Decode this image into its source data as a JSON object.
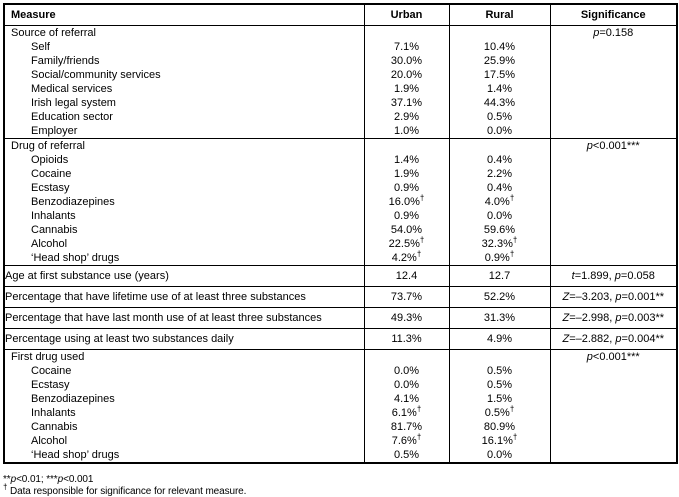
{
  "colors": {
    "background": "#ffffff",
    "text": "#000000",
    "border": "#000000"
  },
  "table": {
    "columns": [
      "Measure",
      "Urban",
      "Rural",
      "Significance"
    ],
    "rows": [
      {
        "type": "group",
        "label": "Source of referral",
        "sig": "p=0.158",
        "items": [
          {
            "label": "Self",
            "urban": "7.1%",
            "rural": "10.4%"
          },
          {
            "label": "Family/friends",
            "urban": "30.0%",
            "rural": "25.9%"
          },
          {
            "label": "Social/community services",
            "urban": "20.0%",
            "rural": "17.5%"
          },
          {
            "label": "Medical services",
            "urban": "1.9%",
            "rural": "1.4%"
          },
          {
            "label": "Irish legal system",
            "urban": "37.1%",
            "rural": "44.3%"
          },
          {
            "label": "Education sector",
            "urban": "2.9%",
            "rural": "0.5%"
          },
          {
            "label": "Employer",
            "urban": "1.0%",
            "rural": "0.0%"
          }
        ]
      },
      {
        "type": "group",
        "label": "Drug of referral",
        "sig": "p<0.001***",
        "items": [
          {
            "label": "Opioids",
            "urban": "1.4%",
            "rural": "0.4%"
          },
          {
            "label": "Cocaine",
            "urban": "1.9%",
            "rural": "2.2%"
          },
          {
            "label": "Ecstasy",
            "urban": "0.9%",
            "rural": "0.4%"
          },
          {
            "label": "Benzodiazepines",
            "urban": "16.0%†",
            "rural": "4.0%†"
          },
          {
            "label": "Inhalants",
            "urban": "0.9%",
            "rural": "0.0%"
          },
          {
            "label": "Cannabis",
            "urban": "54.0%",
            "rural": "59.6%"
          },
          {
            "label": "Alcohol",
            "urban": "22.5%†",
            "rural": "32.3%†"
          },
          {
            "label": "‘Head shop’ drugs",
            "urban": "4.2%†",
            "rural": "0.9%†"
          }
        ]
      },
      {
        "type": "single",
        "label": "Age at first substance use (years)",
        "urban": "12.4",
        "rural": "12.7",
        "sig": "t=1.899, p=0.058"
      },
      {
        "type": "single",
        "label": "Percentage that have lifetime use of at least three substances",
        "urban": "73.7%",
        "rural": "52.2%",
        "sig": "Z=–3.203, p=0.001**"
      },
      {
        "type": "single",
        "label": "Percentage that have last month use of at least three substances",
        "urban": "49.3%",
        "rural": "31.3%",
        "sig": "Z=–2.998, p=0.003**"
      },
      {
        "type": "single",
        "label": "Percentage using at least two substances daily",
        "urban": "11.3%",
        "rural": "4.9%",
        "sig": "Z=–2.882, p=0.004**"
      },
      {
        "type": "group",
        "label": "First drug used",
        "sig": "p<0.001***",
        "items": [
          {
            "label": "Cocaine",
            "urban": "0.0%",
            "rural": "0.5%"
          },
          {
            "label": "Ecstasy",
            "urban": "0.0%",
            "rural": "0.5%"
          },
          {
            "label": "Benzodiazepines",
            "urban": "4.1%",
            "rural": "1.5%"
          },
          {
            "label": "Inhalants",
            "urban": "6.1%†",
            "rural": "0.5%†"
          },
          {
            "label": "Cannabis",
            "urban": "81.7%",
            "rural": "80.9%"
          },
          {
            "label": "Alcohol",
            "urban": "7.6%†",
            "rural": "16.1%†"
          },
          {
            "label": "‘Head shop’ drugs",
            "urban": "0.5%",
            "rural": "0.0%"
          }
        ]
      }
    ]
  },
  "footnotes": [
    "**p<0.01; ***p<0.001",
    "† Data responsible for significance for relevant measure."
  ]
}
